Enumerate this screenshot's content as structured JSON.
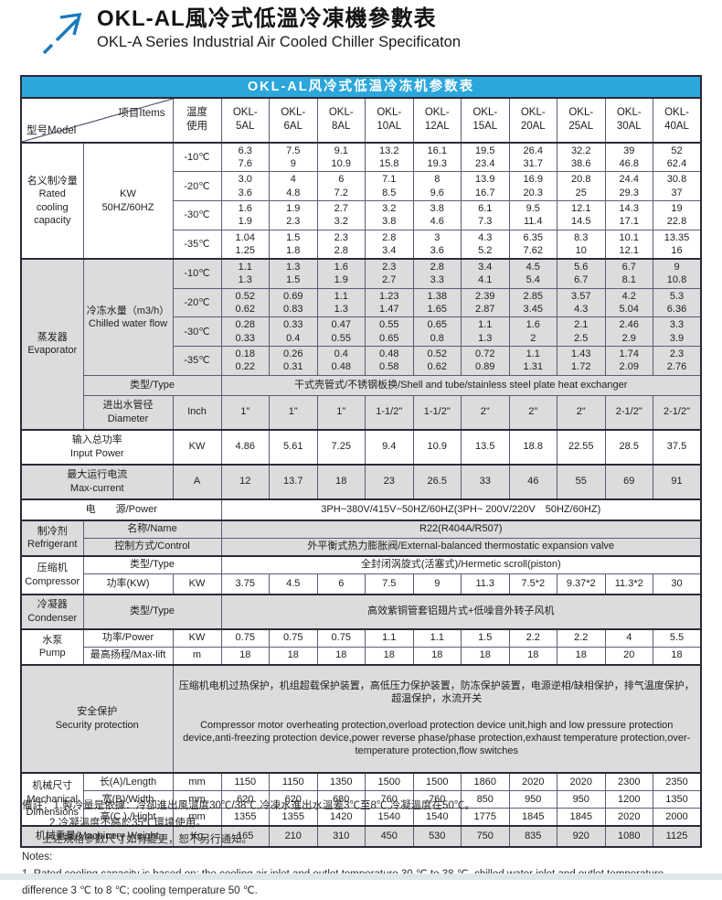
{
  "page": {
    "title_zh": "OKL-AL風冷式低溫冷凍機參數表",
    "title_en": "OKL-A Series Industrial Air Cooled Chiller Specificaton"
  },
  "colors": {
    "accent": "#2BA7DC",
    "band": "#DCDCDC",
    "arrow": "#1878BE"
  },
  "table": {
    "title": "OKL-AL风冷式低温冷冻机参数表",
    "corner": {
      "model": "型号Model",
      "items": "项目Items"
    },
    "temp_header": "温度\n使用",
    "models": [
      "OKL-\n5AL",
      "OKL-\n6AL",
      "OKL-\n8AL",
      "OKL-\n10AL",
      "OKL-\n12AL",
      "OKL-\n15AL",
      "OKL-\n20AL",
      "OKL-\n25AL",
      "OKL-\n30AL",
      "OKL-\n40AL"
    ],
    "cooling": {
      "section_label": "名义制冷量\nRated\ncooling\ncapacity",
      "item_label": "KW\n50HZ/60HZ",
      "rows": [
        {
          "temp": "-10℃",
          "values": [
            "6.3\n7.6",
            "7.5\n9",
            "9.1\n10.9",
            "13.2\n15.8",
            "16.1\n19.3",
            "19.5\n23.4",
            "26.4\n31.7",
            "32.2\n38.6",
            "39\n46.8",
            "52\n62.4"
          ]
        },
        {
          "temp": "-20℃",
          "values": [
            "3.0\n3.6",
            "4\n4.8",
            "6\n7.2",
            "7.1\n8.5",
            "8\n9.6",
            "13.9\n16.7",
            "16.9\n20.3",
            "20.8\n25",
            "24.4\n29.3",
            "30.8\n37"
          ]
        },
        {
          "temp": "-30℃",
          "values": [
            "1.6\n1.9",
            "1.9\n2.3",
            "2.7\n3.2",
            "3.2\n3.8",
            "3.8\n4.6",
            "6.1\n7.3",
            "9.5\n11.4",
            "12.1\n14.5",
            "14.3\n17.1",
            "19\n22.8"
          ]
        },
        {
          "temp": "-35℃",
          "values": [
            "1.04\n1.25",
            "1.5\n1.8",
            "2.3\n2.8",
            "2.8\n3.4",
            "3\n3.6",
            "4.3\n5.2",
            "6.35\n7.62",
            "8.3\n10",
            "10.1\n12.1",
            "13.35\n16"
          ]
        }
      ]
    },
    "evaporator": {
      "section_label": "蒸发器\nEvaporator",
      "flow_label": "冷冻水量（m3/h）\nChilled water flow",
      "rows": [
        {
          "temp": "-10℃",
          "values": [
            "1.1\n1.3",
            "1.3\n1.5",
            "1.6\n1.9",
            "2.3\n2.7",
            "2.8\n3.3",
            "3.4\n4.1",
            "4.5\n5.4",
            "5.6\n6.7",
            "6.7\n8.1",
            "9\n10.8"
          ]
        },
        {
          "temp": "-20℃",
          "values": [
            "0.52\n0.62",
            "0.69\n0.83",
            "1.1\n1.3",
            "1.23\n1.47",
            "1.38\n1.65",
            "2.39\n2.87",
            "2.85\n3.45",
            "3.57\n4.3",
            "4.2\n5.04",
            "5.3\n6.36"
          ]
        },
        {
          "temp": "-30℃",
          "values": [
            "0.28\n0.33",
            "0.33\n0.4",
            "0.47\n0.55",
            "0.55\n0.65",
            "0.65\n0.8",
            "1.1\n1.3",
            "1.6\n2",
            "2.1\n2.5",
            "2.46\n2.9",
            "3.3\n3.9"
          ]
        },
        {
          "temp": "-35℃",
          "values": [
            "0.18\n0.22",
            "0.26\n0.31",
            "0.4\n0.48",
            "0.48\n0.58",
            "0.52\n0.62",
            "0.72\n0.89",
            "1.1\n1.31",
            "1.43\n1.72",
            "1.74\n2.09",
            "2.3\n2.76"
          ]
        }
      ],
      "type_label": "类型/Type",
      "type_value": "干式壳管式/不锈钢板换/Shell and tube/stainless steel plate heat exchanger",
      "diameter_label": "进出水管径\nDiameter",
      "diameter_unit": "Inch",
      "diameter_values": [
        "1\"",
        "1\"",
        "1\"",
        "1-1/2\"",
        "1-1/2\"",
        "2\"",
        "2\"",
        "2\"",
        "2-1/2\"",
        "2-1/2\""
      ]
    },
    "input_power": {
      "label": "输入总功率\nInput Power",
      "unit": "KW",
      "values": [
        "4.86",
        "5.61",
        "7.25",
        "9.4",
        "10.9",
        "13.5",
        "18.8",
        "22.55",
        "28.5",
        "37.5"
      ]
    },
    "max_current": {
      "label": "最大运行电流\nMax-current",
      "unit": "A",
      "values": [
        "12",
        "13.7",
        "18",
        "23",
        "26.5",
        "33",
        "46",
        "55",
        "69",
        "91"
      ]
    },
    "power_supply": {
      "label": "电　　源/Power",
      "value": "3PH~380V/415V~50HZ/60HZ(3PH~ 200V/220V　50HZ/60HZ)"
    },
    "refrigerant": {
      "section_label": "制冷剂\nRefrigerant",
      "name_label": "名称/Name",
      "name_value": "R22(R404A/R507)",
      "control_label": "控制方式/Control",
      "control_value": "外平衡式热力膨胀阀/External-balanced thermostatic expansion valve"
    },
    "compressor": {
      "section_label": "压缩机\nCompressor",
      "type_label": "类型/Type",
      "type_value": "全封闭涡旋式(活塞式)/Hermetic scroll(piston)",
      "power_label": "功率(KW)",
      "power_unit": "KW",
      "power_values": [
        "3.75",
        "4.5",
        "6",
        "7.5",
        "9",
        "11.3",
        "7.5*2",
        "9.37*2",
        "11.3*2",
        "30"
      ]
    },
    "condenser": {
      "section_label": "冷凝器\nCondenser",
      "type_label": "类型/Type",
      "type_value": "高效紫铜管套铝翅片式+低噪音外转子风机"
    },
    "pump": {
      "section_label": "水泵\nPump",
      "power_label": "功率/Power",
      "power_unit": "KW",
      "power_values": [
        "0.75",
        "0.75",
        "0.75",
        "1.1",
        "1.1",
        "1.5",
        "2.2",
        "2.2",
        "4",
        "5.5"
      ],
      "lift_label": "最高扬程/Max-lift",
      "lift_unit": "m",
      "lift_values": [
        "18",
        "18",
        "18",
        "18",
        "18",
        "18",
        "18",
        "18",
        "20",
        "18"
      ]
    },
    "security": {
      "label": "安全保护\nSecurity protection",
      "value_zh": "压缩机电机过热保护，机组超载保护装置，高低压力保护装置，防冻保护装置，电源逆相/缺相保护，排气温度保护，超温保护，水流开关",
      "value_en": " Compressor motor overheating protection,overload protection device unit,high and low pressure protection device,anti-freezing protection device,power reverse phase/phase protection,exhaust temperature protection,over-temperature protection,flow switches"
    },
    "dimensions": {
      "section_label": "机械尺寸\nMechanical\nDimensions",
      "rows": [
        {
          "label": "长(A)/Length",
          "unit": "mm",
          "values": [
            "1150",
            "1150",
            "1350",
            "1500",
            "1500",
            "1860",
            "2020",
            "2020",
            "2300",
            "2350"
          ]
        },
        {
          "label": "宽(B)/Width",
          "unit": "mm",
          "values": [
            "620",
            "620",
            "680",
            "760",
            "760",
            "850",
            "950",
            "950",
            "1200",
            "1350"
          ]
        },
        {
          "label": "高(C ) /Hight",
          "unit": "mm",
          "values": [
            "1355",
            "1355",
            "1420",
            "1540",
            "1540",
            "1775",
            "1845",
            "1845",
            "2020",
            "2000"
          ]
        }
      ]
    },
    "weight": {
      "label": "机械重量/Machinery Weight",
      "unit": "Kg",
      "values": [
        "165",
        "210",
        "310",
        "450",
        "530",
        "750",
        "835",
        "920",
        "1080",
        "1125"
      ]
    }
  },
  "notes": {
    "zh1": "備註：1.製冷量是依據：冷卻進出風溫度30℃/38℃,冷凍水進出水溫差3℃至8℃,冷凝溫度在50℃。",
    "zh2": "2.冷凝溫度不高於35℃環境使用。",
    "zh3": "上述規格參數尺寸如有變更，恕不另行通知。",
    "en_title": "Notes:",
    "en_body": "1. Rated cooling capacity is based on: the cooling air inlet and outlet temperature 30 ℃ to 38 ℃, chilled water inlet and outlet temperature difference 3 ℃ to 8 ℃; cooling temperature 50 ℃."
  }
}
